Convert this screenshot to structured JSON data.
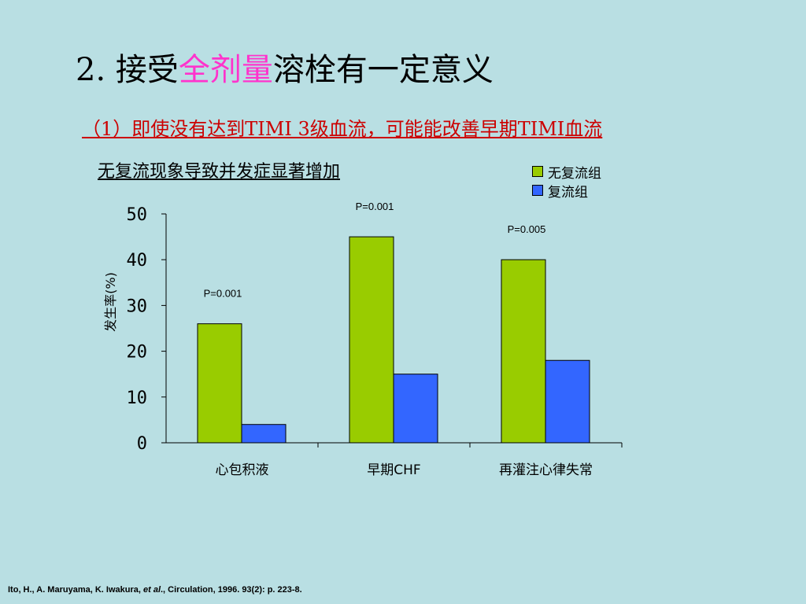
{
  "slide": {
    "title_prefix": "2. 接受",
    "title_highlight": "全剂量",
    "title_suffix": "溶栓有一定意义",
    "subtitle": "（1）即使没有达到TIMI 3级血流，可能能改善早期TIMI血流",
    "chart_heading": "无复流现象导致并发症显著增加",
    "citation_authors": "Ito, H., A. Maruyama, K. Iwakura, ",
    "citation_etal": "et al",
    "citation_rest": "., Circulation, 1996. 93(2): p. 223-8."
  },
  "chart_data": {
    "type": "bar",
    "categories": [
      "心包积液",
      "早期CHF",
      "再灌注心律失常"
    ],
    "series": [
      {
        "name": "无复流组",
        "values": [
          26,
          45,
          40
        ],
        "color": "#99cc00"
      },
      {
        "name": "复流组",
        "values": [
          4,
          15,
          18
        ],
        "color": "#3366ff"
      }
    ],
    "annotations": [
      "P=0.001",
      "P=0.001",
      "P=0.005"
    ],
    "ylabel": "发生率(%)",
    "xlabel": "",
    "ylim": [
      0,
      50
    ],
    "yticks": [
      0,
      10,
      20,
      30,
      40,
      50
    ],
    "grid": false,
    "legend_position": "top-right"
  }
}
